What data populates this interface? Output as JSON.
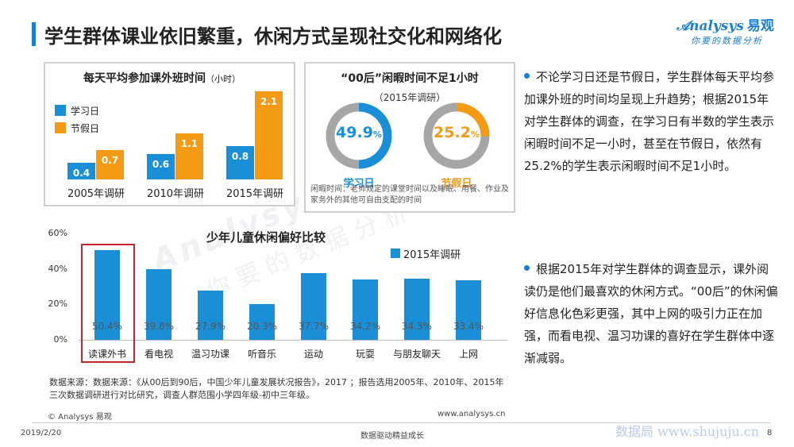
{
  "header": {
    "title": "学生群体课业依旧繁重，休闲方式呈现社交化和网络化",
    "brand_name": "nalysys",
    "brand_cn": "易观",
    "brand_slogan": "你要的数据分析"
  },
  "chart1": {
    "title": "每天平均参加课外班时间",
    "unit": "（小时）",
    "legend": [
      "学习日",
      "节假日"
    ],
    "colors": {
      "weekday": "#1a8fd8",
      "holiday": "#f59a14"
    }
  },
  "chart2": {
    "title": "“00后”闲暇时间不足1小时",
    "subtitle": "（2015年调研）",
    "weekday_value": "49.9",
    "holiday_value": "25.2",
    "pct": "%",
    "weekday_label": "学习日",
    "holiday_label": "节假日",
    "note": "闲暇时间：老师规定的课堂时间以及睡眠、用餐、作业及家务外的其他可自由支配的时间"
  },
  "chart3": {
    "title": "少年儿童休闲偏好比较",
    "legend": "2015年调研",
    "yticks": [
      "60%",
      "40%",
      "20%",
      "0%"
    ]
  },
  "chart_data": [
    {
      "type": "bar",
      "title": "每天平均参加课外班时间（小时）",
      "categories": [
        "2005年调研",
        "2010年调研",
        "2015年调研"
      ],
      "series": [
        {
          "name": "学习日",
          "values": [
            0.4,
            0.6,
            0.8
          ]
        },
        {
          "name": "节假日",
          "values": [
            0.7,
            1.1,
            2.1
          ]
        }
      ],
      "ylim": [
        0,
        2.3
      ],
      "legend_position": "top-left",
      "grid": false
    },
    {
      "type": "pie",
      "title": "“00后”闲暇时间不足1小时",
      "subtitle": "（2015年调研）",
      "categories": [
        "学习日",
        "节假日"
      ],
      "values": [
        49.9,
        25.2
      ],
      "unit": "%"
    },
    {
      "type": "bar",
      "title": "少年儿童休闲偏好比较",
      "categories": [
        "读课外书",
        "看电视",
        "温习功课",
        "听音乐",
        "运动",
        "玩耍",
        "与朋友聊天",
        "上网"
      ],
      "series": [
        {
          "name": "2015年调研",
          "values": [
            50.4,
            39.8,
            27.9,
            20.3,
            37.7,
            34.2,
            34.3,
            33.4
          ]
        }
      ],
      "value_labels": [
        "50.4%",
        "39.8%",
        "27.9%",
        "20.3%",
        "37.7%",
        "34.2%",
        "34.3%",
        "33.4%"
      ],
      "ylim": [
        0,
        60
      ],
      "ylabel": "",
      "legend_position": "top-right",
      "grid": false,
      "highlight": "读课外书"
    }
  ],
  "bullets": {
    "first": "不论学习日还是节假日，学生群体每天平均参加课外班的时间均呈现上升趋势；根据2015年对学生群体的调查，在学习日有半数的学生表示闲暇时间不足一小时，甚至在节假日，依然有25.2%的学生表示闲暇时间不足1小时。",
    "second": "根据2015年对学生群体的调查显示，课外阅读仍是他们最喜欢的休闲方式。“00后”的休闲偏好信息化色彩更强，其中上网的吸引力正在加强，而看电视、温习功课的喜好在学生群体中逐渐减弱。"
  },
  "footer": {
    "source": "数据来源：数据来源：《从00后到90后，中国少年儿童发展状况报告》，2017 ；报告选用2005年、2010年、2015年三次数据调研进行对比研究，调查人群范围小学四年级-初中三年级。",
    "copyright": "© Analysys 易观",
    "site": "www.analysys.cn",
    "date": "2019/2/20",
    "slogan": "数据驱动精益成长",
    "watermark": "数据局 www.shujuju.cn",
    "page": "8"
  }
}
